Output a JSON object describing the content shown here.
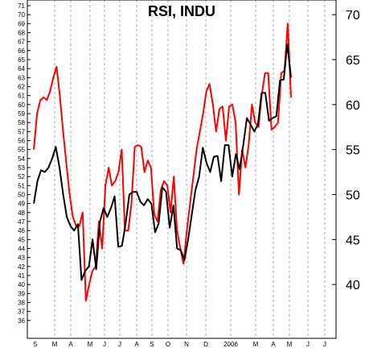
{
  "chart_data": {
    "type": "line",
    "title": "RSI, INDU",
    "x_labels": [
      "5",
      "M",
      "A",
      "M",
      "J",
      "J",
      "A",
      "S",
      "O",
      "N",
      "D",
      "2006",
      "M",
      "A",
      "M",
      "J",
      "J"
    ],
    "y_left_ticks": [
      36,
      37,
      38,
      39,
      40,
      41,
      42,
      43,
      44,
      45,
      46,
      47,
      48,
      49,
      50,
      51,
      52,
      53,
      54,
      55,
      56,
      57,
      58,
      59,
      60,
      61,
      62,
      63,
      64,
      65,
      66,
      67,
      68,
      69,
      70,
      71
    ],
    "y_right_ticks": [
      40,
      45,
      50,
      55,
      60,
      65,
      70
    ],
    "ylim": [
      35,
      72
    ],
    "grid": "vertical dashed",
    "colors": {
      "series_1": "#ff0000",
      "series_2": "#000000"
    },
    "series": [
      {
        "values": [
          55,
          59,
          60.5,
          60.8,
          60.5,
          61.5,
          63,
          64.2,
          61,
          57,
          53.5,
          50,
          47.5,
          46.5,
          46.5,
          48,
          38.2,
          40,
          41.5,
          42,
          47,
          44,
          51,
          53,
          51,
          51.5,
          52.5,
          55,
          46,
          46,
          49,
          55.3,
          55.5,
          55.3,
          52.5,
          53.8,
          53,
          47.8,
          47,
          50.5,
          51.5,
          51,
          48,
          52,
          46,
          44,
          42.3,
          46,
          49,
          52,
          55,
          57,
          59,
          61.5,
          62.3,
          60,
          57,
          59.5,
          59.8,
          56,
          59.8,
          60,
          58,
          50,
          55,
          53,
          55.5,
          60,
          58,
          57.5,
          61,
          63.5,
          63.5,
          57.2,
          57.5,
          58,
          63.5,
          63.8,
          69,
          60.8
        ]
      },
      {
        "values": [
          49,
          51.5,
          52.7,
          52.5,
          53,
          54,
          55.3,
          53,
          50,
          47.5,
          46.5,
          46,
          46.7,
          40.5,
          41.5,
          42,
          45,
          41.7,
          47,
          48.5,
          47.5,
          48.5,
          49.8,
          44.2,
          44.3,
          46.8,
          50,
          50.3,
          50.3,
          49.2,
          48.8,
          49.5,
          49,
          45.8,
          46.8,
          50.8,
          50.3,
          46.3,
          48.8,
          44,
          43.8,
          42.7,
          45,
          47.8,
          50.5,
          52,
          55.2,
          53.5,
          52.5,
          54.2,
          54.3,
          51.5,
          55.5,
          55.5,
          52,
          54.5,
          52.8,
          55.5,
          58.5,
          57.8,
          57,
          57.8,
          61.3,
          61.3,
          58.2,
          58.5,
          58.7,
          62.7,
          62.8,
          66.7,
          63
        ]
      }
    ]
  }
}
